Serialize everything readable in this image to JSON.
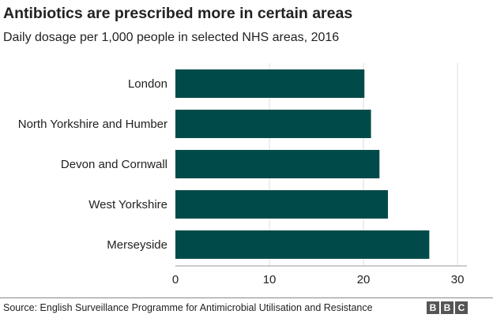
{
  "chart_data": {
    "type": "bar",
    "orientation": "horizontal",
    "title": "Antibiotics are prescribed more in certain areas",
    "subtitle": "Daily dosage per 1,000 people in selected NHS areas, 2016",
    "categories": [
      "London",
      "North Yorkshire and Humber",
      "Devon and Cornwall",
      "West Yorkshire",
      "Merseyside"
    ],
    "values": [
      20.1,
      20.8,
      21.7,
      22.6,
      27.0
    ],
    "xlim": [
      0,
      31
    ],
    "xticks": [
      0,
      10,
      20,
      30
    ],
    "bar_color": "#004b49",
    "grid": true
  },
  "footer": {
    "source": "Source: English Surveillance Programme for Antimicrobial Utilisation and Resistance",
    "logo_letters": [
      "B",
      "B",
      "C"
    ]
  }
}
